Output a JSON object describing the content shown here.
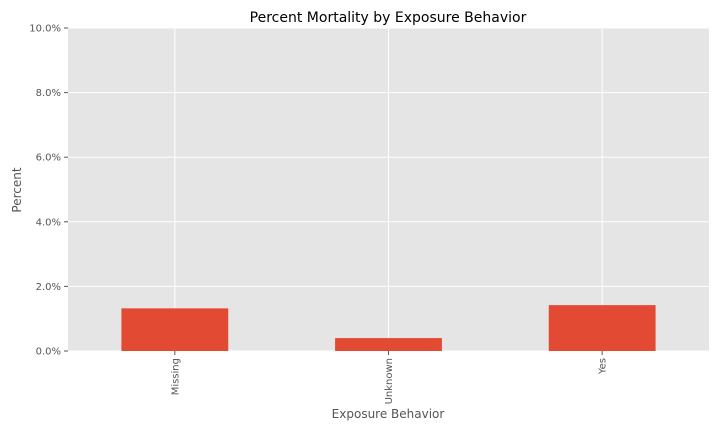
{
  "chart_data": {
    "type": "bar",
    "title": "Percent Mortality by Exposure Behavior",
    "xlabel": "Exposure Behavior",
    "ylabel": "Percent",
    "categories": [
      "Missing",
      "Unknown",
      "Yes"
    ],
    "values": [
      1.32,
      0.4,
      1.42
    ],
    "ylim": [
      0,
      10
    ],
    "yticks": [
      0,
      2,
      4,
      6,
      8,
      10
    ],
    "ytick_labels": [
      "0.0%",
      "2.0%",
      "4.0%",
      "6.0%",
      "8.0%",
      "10.0%"
    ],
    "grid": true,
    "legend": "none",
    "colors": {
      "bar": "#E24A33",
      "plot_background": "#E5E5E5",
      "grid": "#FFFFFF"
    }
  }
}
